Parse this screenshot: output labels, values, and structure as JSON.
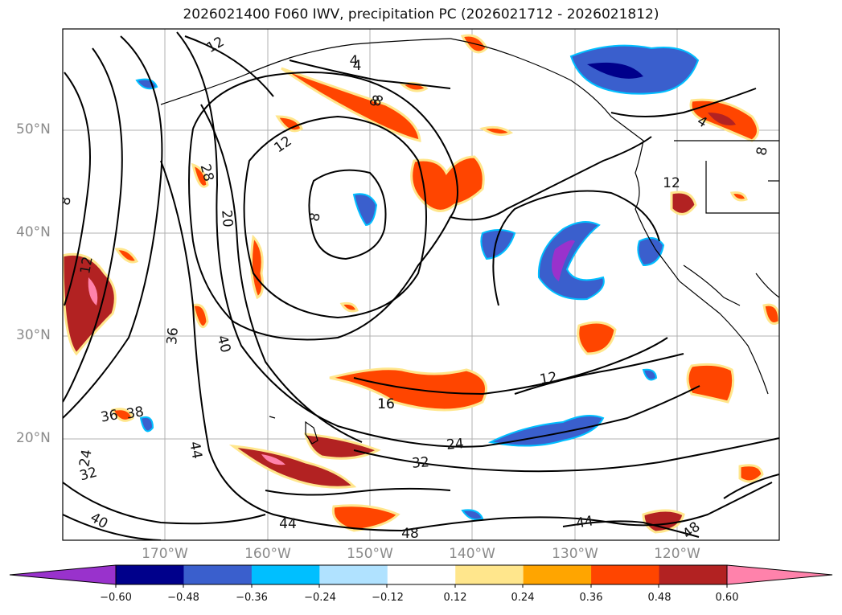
{
  "title": "2026021400 F060 IWV, precipitation PC (2026021712 - 2026021812)",
  "lat_labels": [
    "50°N",
    "40°N",
    "30°N",
    "20°N"
  ],
  "lon_labels": [
    "170°W",
    "160°W",
    "150°W",
    "140°W",
    "130°W",
    "120°W"
  ],
  "contour_labels": [
    "12",
    "4",
    "8",
    "12",
    "8",
    "16",
    "28",
    "20",
    "8",
    "12",
    "36",
    "40",
    "36",
    "38",
    "24",
    "32",
    "44",
    "40",
    "16",
    "24",
    "32",
    "12",
    "44",
    "48",
    "44",
    "48",
    "4",
    "8",
    "12",
    "8",
    "4"
  ],
  "colorbar": {
    "ticks": [
      "−0.60",
      "−0.48",
      "−0.36",
      "−0.24",
      "−0.12",
      "0.12",
      "0.24",
      "0.36",
      "0.48",
      "0.60"
    ],
    "colors": [
      "#9932cc",
      "#00008b",
      "#3a5fcd",
      "#00bfff",
      "#b0e2ff",
      "#ffffff",
      "#ffe68c",
      "#ffa500",
      "#ff4500",
      "#b22222",
      "#ff82ab"
    ]
  }
}
